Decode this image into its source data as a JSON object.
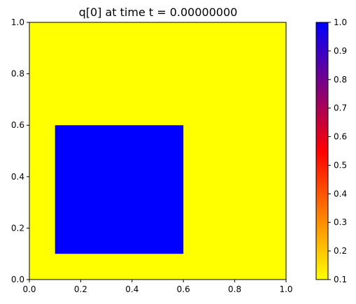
{
  "chart_data": {
    "type": "heatmap",
    "title": "q[0] at time t =     0.00000000",
    "xlim": [
      0.0,
      1.0
    ],
    "ylim": [
      0.0,
      1.0
    ],
    "x_ticks": [
      "0.0",
      "0.2",
      "0.4",
      "0.6",
      "0.8",
      "1.0"
    ],
    "y_ticks": [
      "0.0",
      "0.2",
      "0.4",
      "0.6",
      "0.8",
      "1.0"
    ],
    "background_value": 0.1,
    "regions": [
      {
        "x": [
          0.1,
          0.6
        ],
        "y": [
          0.1,
          0.6
        ],
        "value": 1.0
      }
    ],
    "colorbar": {
      "min": 0.1,
      "max": 1.0,
      "ticks": [
        "0.1",
        "0.2",
        "0.3",
        "0.4",
        "0.5",
        "0.6",
        "0.7",
        "0.8",
        "0.9",
        "1.0"
      ],
      "colormap": [
        {
          "value": 0.1,
          "color": "#ffff00"
        },
        {
          "value": 0.55,
          "color": "#ff0000"
        },
        {
          "value": 1.0,
          "color": "#0000ff"
        }
      ]
    },
    "grid": false
  }
}
